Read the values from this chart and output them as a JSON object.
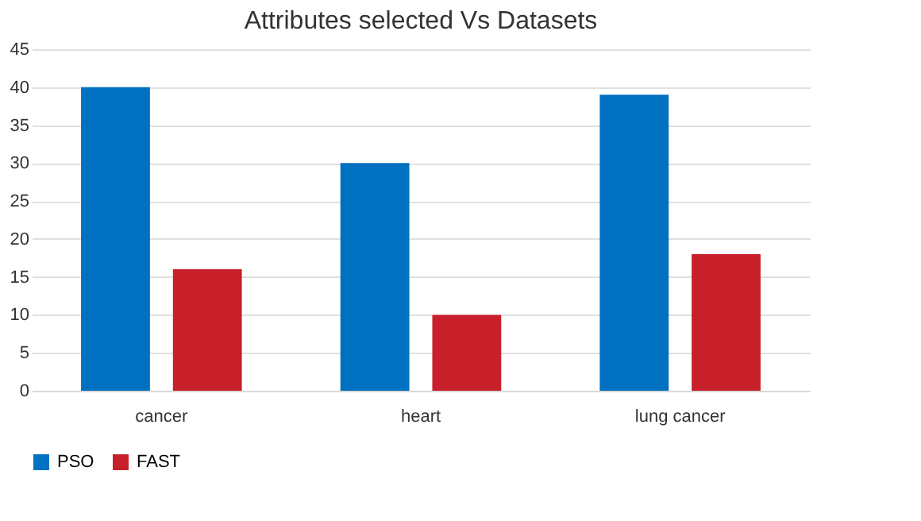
{
  "chart_data": {
    "type": "bar",
    "title": "Attributes selected Vs Datasets",
    "categories": [
      "cancer",
      "heart",
      "lung cancer"
    ],
    "series": [
      {
        "name": "PSO",
        "color": "#0070c0",
        "values": [
          40,
          30,
          39
        ]
      },
      {
        "name": "FAST",
        "color": "#c8202a",
        "values": [
          16,
          10,
          18
        ]
      }
    ],
    "ylim": [
      0,
      45
    ],
    "yticks": [
      0,
      5,
      10,
      15,
      20,
      25,
      30,
      35,
      40,
      45
    ],
    "grid": "y",
    "legend": "bottom"
  }
}
